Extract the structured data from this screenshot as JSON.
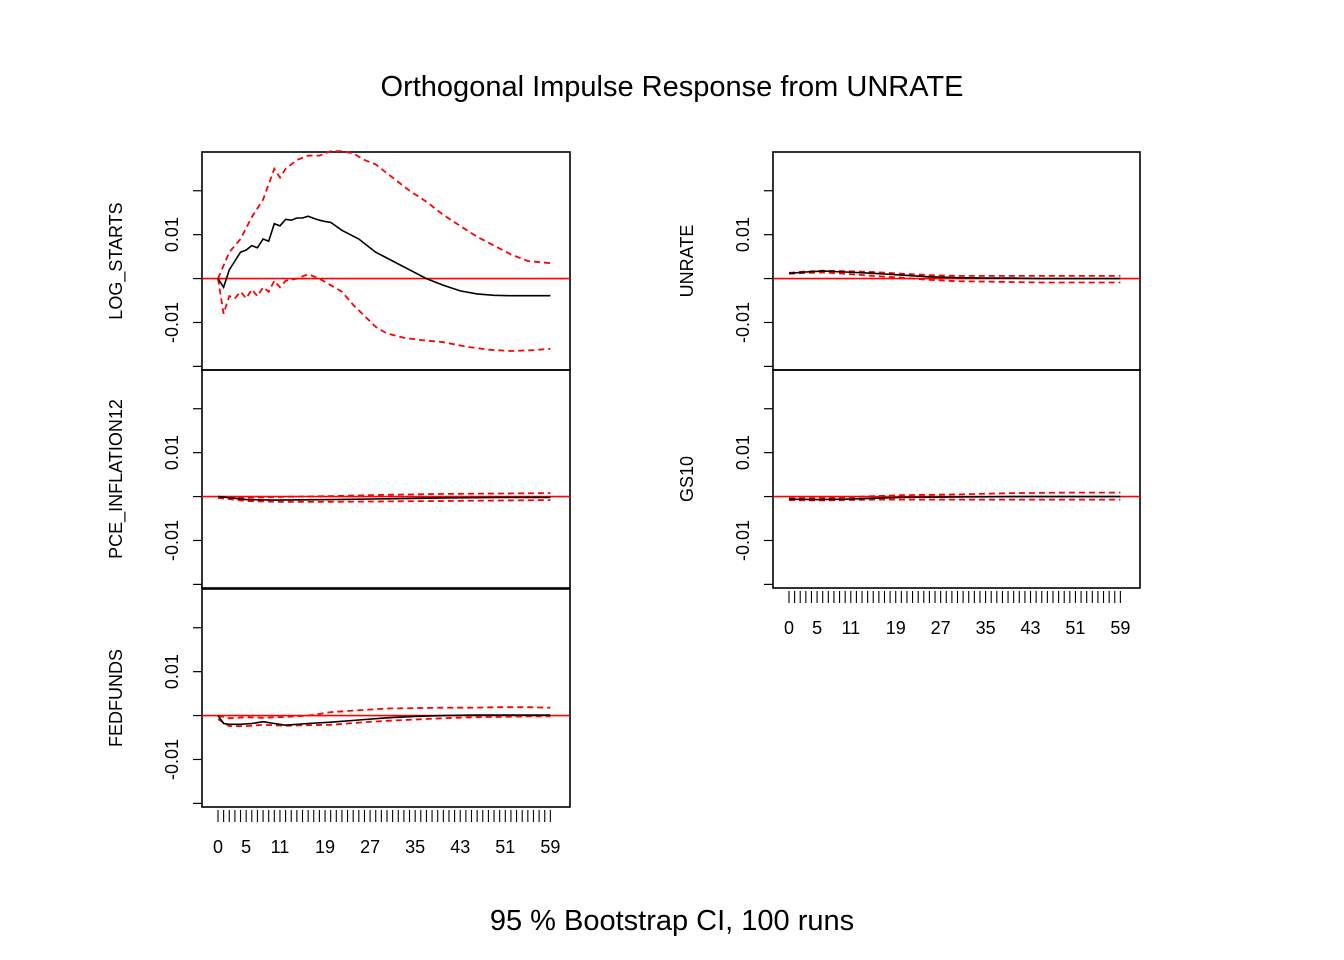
{
  "title": "Orthogonal Impulse Response from UNRATE",
  "footer": "95 % Bootstrap CI,  100 runs",
  "colors": {
    "response": "#000000",
    "ci": "#ff0000",
    "zero_line": "#ff0000",
    "frame": "#000000"
  },
  "chart_data": {
    "type": "line",
    "x_tick_labels": [
      "0",
      "5",
      "11",
      "19",
      "27",
      "35",
      "43",
      "51",
      "59"
    ],
    "x_ticks": [
      0,
      5,
      11,
      19,
      27,
      35,
      43,
      51,
      59
    ],
    "xlim": [
      0,
      60
    ],
    "ylim": [
      -0.019,
      0.027
    ],
    "y_ticks": [
      -0.01,
      0.01
    ],
    "y_tick_labels": [
      "-0.01",
      "0.01"
    ],
    "y_minor_ticks": [
      -0.02,
      -0.01,
      0.0,
      0.01,
      0.02
    ],
    "line_styles": {
      "response": "solid black",
      "ci": "dashed red",
      "zero_line": "solid red"
    },
    "panels": [
      {
        "name": "LOG_STARTS",
        "column": "left",
        "response": {
          "x": [
            0,
            1,
            2,
            3,
            4,
            5,
            6,
            7,
            8,
            9,
            10,
            11,
            12,
            13,
            14,
            15,
            16,
            17,
            18,
            19,
            20,
            22,
            25,
            28,
            31,
            34,
            37,
            40,
            43,
            46,
            49,
            52,
            55,
            59
          ],
          "y": [
            0.0,
            -0.002,
            0.002,
            0.004,
            0.006,
            0.0065,
            0.0075,
            0.007,
            0.009,
            0.0085,
            0.0125,
            0.012,
            0.0135,
            0.0133,
            0.0138,
            0.0138,
            0.0142,
            0.0137,
            0.0133,
            0.013,
            0.0128,
            0.011,
            0.009,
            0.006,
            0.004,
            0.002,
            0.0,
            -0.0015,
            -0.0028,
            -0.0035,
            -0.0038,
            -0.0039,
            -0.0039,
            -0.0039
          ]
        },
        "ci_upper": {
          "x": [
            0,
            2,
            4,
            6,
            8,
            10,
            11,
            12,
            14,
            16,
            18,
            20,
            22,
            24,
            26,
            28,
            31,
            34,
            37,
            40,
            43,
            46,
            49,
            52,
            55,
            59
          ],
          "y": [
            0.0,
            0.006,
            0.009,
            0.014,
            0.018,
            0.025,
            0.023,
            0.025,
            0.027,
            0.028,
            0.028,
            0.029,
            0.029,
            0.0285,
            0.027,
            0.026,
            0.023,
            0.02,
            0.0175,
            0.0145,
            0.012,
            0.0095,
            0.0075,
            0.0055,
            0.004,
            0.0035
          ]
        },
        "ci_lower": {
          "x": [
            0,
            1,
            2,
            3,
            4,
            5,
            6,
            7,
            8,
            9,
            10,
            11,
            12,
            14,
            16,
            18,
            20,
            22,
            24,
            26,
            28,
            30,
            33,
            36,
            40,
            44,
            48,
            52,
            56,
            59
          ],
          "y": [
            0.0,
            -0.008,
            -0.004,
            -0.0045,
            -0.003,
            -0.0045,
            -0.0025,
            -0.004,
            -0.002,
            -0.003,
            -0.0005,
            -0.002,
            -0.0005,
            0.0,
            0.001,
            0.0,
            -0.0015,
            -0.003,
            -0.006,
            -0.0085,
            -0.011,
            -0.0125,
            -0.0135,
            -0.014,
            -0.0145,
            -0.0155,
            -0.0162,
            -0.0165,
            -0.0163,
            -0.016
          ]
        }
      },
      {
        "name": "PCE_INFLATION12",
        "column": "left",
        "response": {
          "x": [
            0,
            5,
            10,
            20,
            30,
            40,
            50,
            59
          ],
          "y": [
            0.0,
            -0.0007,
            -0.0008,
            -0.0007,
            -0.0005,
            -0.0003,
            -0.0002,
            -0.0002
          ]
        },
        "ci_upper": {
          "x": [
            0,
            5,
            10,
            20,
            30,
            40,
            50,
            59
          ],
          "y": [
            0.0,
            -0.0003,
            -0.0001,
            0.0001,
            0.0004,
            0.0006,
            0.0007,
            0.0008
          ]
        },
        "ci_lower": {
          "x": [
            0,
            5,
            10,
            20,
            30,
            40,
            50,
            59
          ],
          "y": [
            -0.0003,
            -0.001,
            -0.0012,
            -0.0012,
            -0.0011,
            -0.001,
            -0.0009,
            -0.0008
          ]
        }
      },
      {
        "name": "FEDFUNDS",
        "column": "left",
        "response": {
          "x": [
            0,
            1,
            2,
            4,
            6,
            8,
            10,
            12,
            16,
            20,
            25,
            30,
            35,
            40,
            45,
            50,
            55,
            59
          ],
          "y": [
            0.0,
            -0.0018,
            -0.002,
            -0.002,
            -0.0018,
            -0.0014,
            -0.0018,
            -0.0022,
            -0.0018,
            -0.0015,
            -0.001,
            -0.0005,
            -0.0002,
            0.0,
            0.0001,
            0.0001,
            0.0001,
            0.0001
          ]
        },
        "ci_upper": {
          "x": [
            0,
            2,
            5,
            8,
            12,
            16,
            20,
            25,
            30,
            35,
            40,
            45,
            50,
            55,
            59
          ],
          "y": [
            0.0,
            -0.0006,
            -0.0004,
            -0.0005,
            -0.0003,
            0.0,
            0.0008,
            0.0012,
            0.0016,
            0.0017,
            0.0018,
            0.0018,
            0.0019,
            0.0019,
            0.0018
          ]
        },
        "ci_lower": {
          "x": [
            0,
            2,
            5,
            8,
            12,
            16,
            20,
            25,
            30,
            35,
            40,
            45,
            50,
            55,
            59
          ],
          "y": [
            -0.0008,
            -0.0024,
            -0.0024,
            -0.0021,
            -0.0023,
            -0.0022,
            -0.0021,
            -0.0016,
            -0.0012,
            -0.0009,
            -0.0006,
            -0.0004,
            -0.0003,
            -0.0002,
            -0.0002
          ]
        }
      },
      {
        "name": "UNRATE",
        "column": "right",
        "response": {
          "x": [
            0,
            3,
            6,
            10,
            15,
            20,
            25,
            30,
            35,
            40,
            45,
            50,
            55,
            59
          ],
          "y": [
            0.0012,
            0.0015,
            0.0017,
            0.0015,
            0.0012,
            0.0008,
            0.0004,
            0.0002,
            0.0001,
            0.0001,
            0.0,
            0.0,
            0.0,
            0.0
          ]
        },
        "ci_upper": {
          "x": [
            0,
            3,
            6,
            10,
            15,
            20,
            25,
            30,
            35,
            40,
            45,
            50,
            55,
            59
          ],
          "y": [
            0.0013,
            0.0016,
            0.0018,
            0.0017,
            0.0015,
            0.0011,
            0.0008,
            0.0006,
            0.0006,
            0.0006,
            0.0006,
            0.0006,
            0.0006,
            0.0006
          ]
        },
        "ci_lower": {
          "x": [
            0,
            3,
            6,
            10,
            15,
            20,
            25,
            30,
            35,
            40,
            45,
            50,
            55,
            59
          ],
          "y": [
            0.0011,
            0.0013,
            0.0014,
            0.0011,
            0.0006,
            0.0002,
            -0.0003,
            -0.0006,
            -0.0007,
            -0.0008,
            -0.0009,
            -0.0009,
            -0.0009,
            -0.0009
          ]
        }
      },
      {
        "name": "GS10",
        "column": "right",
        "response": {
          "x": [
            0,
            5,
            10,
            15,
            20,
            30,
            40,
            50,
            59
          ],
          "y": [
            -0.0006,
            -0.0007,
            -0.0006,
            -0.0004,
            -0.0002,
            -0.0001,
            0.0,
            0.0,
            0.0
          ]
        },
        "ci_upper": {
          "x": [
            0,
            5,
            10,
            15,
            20,
            30,
            40,
            50,
            59
          ],
          "y": [
            -0.0004,
            -0.0004,
            -0.0002,
            0.0001,
            0.0003,
            0.0005,
            0.0008,
            0.0009,
            0.0009
          ]
        },
        "ci_lower": {
          "x": [
            0,
            5,
            10,
            15,
            20,
            30,
            40,
            50,
            59
          ],
          "y": [
            -0.0008,
            -0.0009,
            -0.0008,
            -0.0007,
            -0.0007,
            -0.0007,
            -0.0007,
            -0.0007,
            -0.0007
          ]
        }
      }
    ]
  }
}
